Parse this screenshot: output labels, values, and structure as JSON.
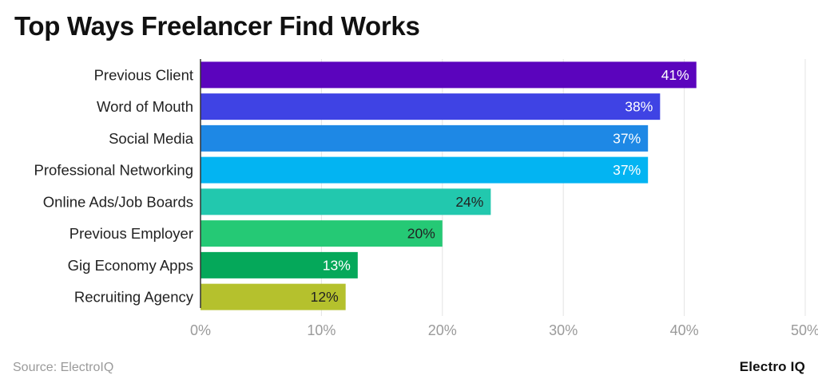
{
  "title": "Top Ways Freelancer Find Works",
  "source": "Source: ElectroIQ",
  "brand": "Electro IQ",
  "chart_data": {
    "type": "bar",
    "orientation": "horizontal",
    "title": "Top Ways Freelancer Find Works",
    "xlabel": "",
    "ylabel": "",
    "xlim": [
      0,
      50
    ],
    "grid": true,
    "ticks": [
      "0%",
      "10%",
      "20%",
      "30%",
      "40%",
      "50%"
    ],
    "tick_values": [
      0,
      10,
      20,
      30,
      40,
      50
    ],
    "categories": [
      "Previous Client",
      "Word of Mouth",
      "Social Media",
      "Professional Networking",
      "Online Ads/Job Boards",
      "Previous Employer",
      "Gig Economy Apps",
      "Recruiting Agency"
    ],
    "values": [
      41,
      38,
      37,
      37,
      24,
      20,
      13,
      12
    ],
    "value_labels": [
      "41%",
      "38%",
      "37%",
      "37%",
      "24%",
      "20%",
      "13%",
      "12%"
    ],
    "colors": [
      "#5b04bd",
      "#3f43e4",
      "#1e88e5",
      "#03b4f2",
      "#22c8ae",
      "#25c975",
      "#05a85a",
      "#b5c12d"
    ],
    "label_colors": [
      "#ffffff",
      "#ffffff",
      "#ffffff",
      "#ffffff",
      "#222222",
      "#222222",
      "#ffffff",
      "#222222"
    ]
  }
}
